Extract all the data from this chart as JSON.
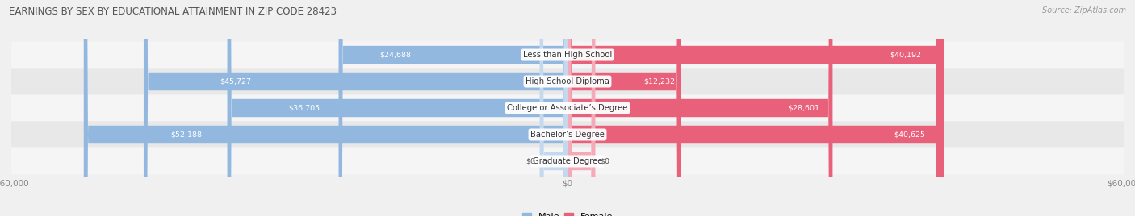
{
  "title": "EARNINGS BY SEX BY EDUCATIONAL ATTAINMENT IN ZIP CODE 28423",
  "source": "Source: ZipAtlas.com",
  "categories": [
    "Less than High School",
    "High School Diploma",
    "College or Associate’s Degree",
    "Bachelor’s Degree",
    "Graduate Degree"
  ],
  "male_values": [
    24688,
    45727,
    36705,
    52188,
    0
  ],
  "female_values": [
    40192,
    12232,
    28601,
    40625,
    0
  ],
  "male_color": "#92b8e0",
  "female_color": "#e8607a",
  "male_placeholder_color": "#c5d9ee",
  "female_placeholder_color": "#f5aab8",
  "max_value": 60000,
  "bg_color": "#f0f0f0",
  "row_colors": [
    "#f5f5f5",
    "#e8e8e8"
  ],
  "title_color": "#555555",
  "source_color": "#999999",
  "legend_male_color": "#92b8e0",
  "legend_female_color": "#e8607a",
  "axis_tick_color": "#888888",
  "label_inside_color": "#ffffff",
  "label_outside_color": "#555555"
}
